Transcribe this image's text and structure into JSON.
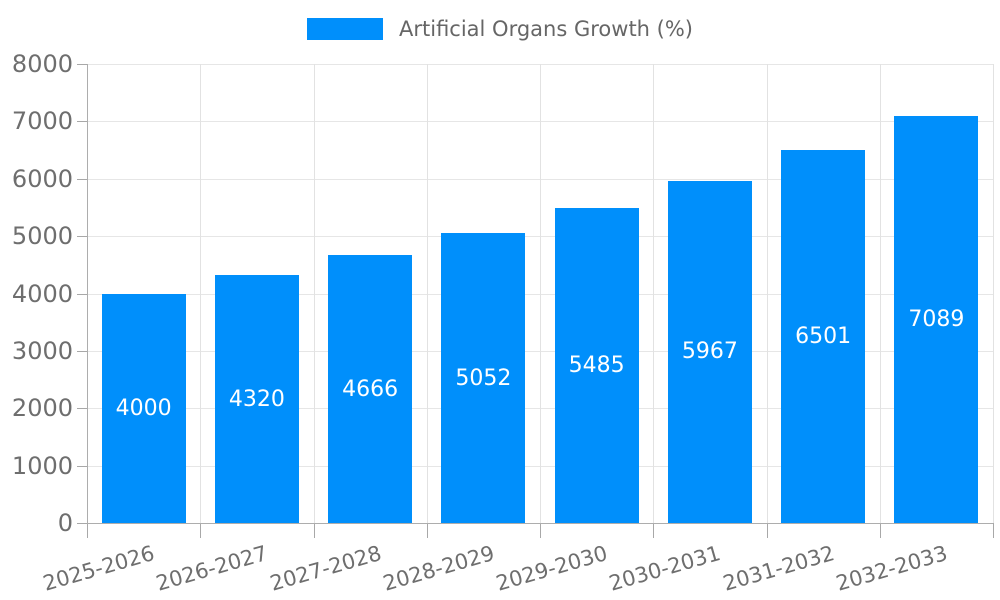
{
  "chart_data": {
    "type": "bar",
    "title": "Artificial Organs Growth (%)",
    "legend": "Artificial Organs Growth (%)",
    "legend_position": "top",
    "categories": [
      "2025-2026",
      "2026-2027",
      "2027-2028",
      "2028-2029",
      "2029-2030",
      "2030-2031",
      "2031-2032",
      "2032-2033"
    ],
    "values": [
      4000,
      4320,
      4666,
      5052,
      5485,
      5967,
      6501,
      7089
    ],
    "xlabel": "",
    "ylabel": "",
    "ylim": [
      0,
      8000
    ],
    "y_ticks": [
      0,
      1000,
      2000,
      3000,
      4000,
      5000,
      6000,
      7000,
      8000
    ],
    "grid": true,
    "x_label_rotation_deg": -16,
    "value_labels_inside_bars": true,
    "colors": {
      "bar": "#008FFB",
      "value_label": "#FFFFFF",
      "axis_text": "#6E6E6E",
      "legend_text": "#666666",
      "gridline": "#E6E6E6",
      "axis_line": "#ADADAD"
    }
  }
}
